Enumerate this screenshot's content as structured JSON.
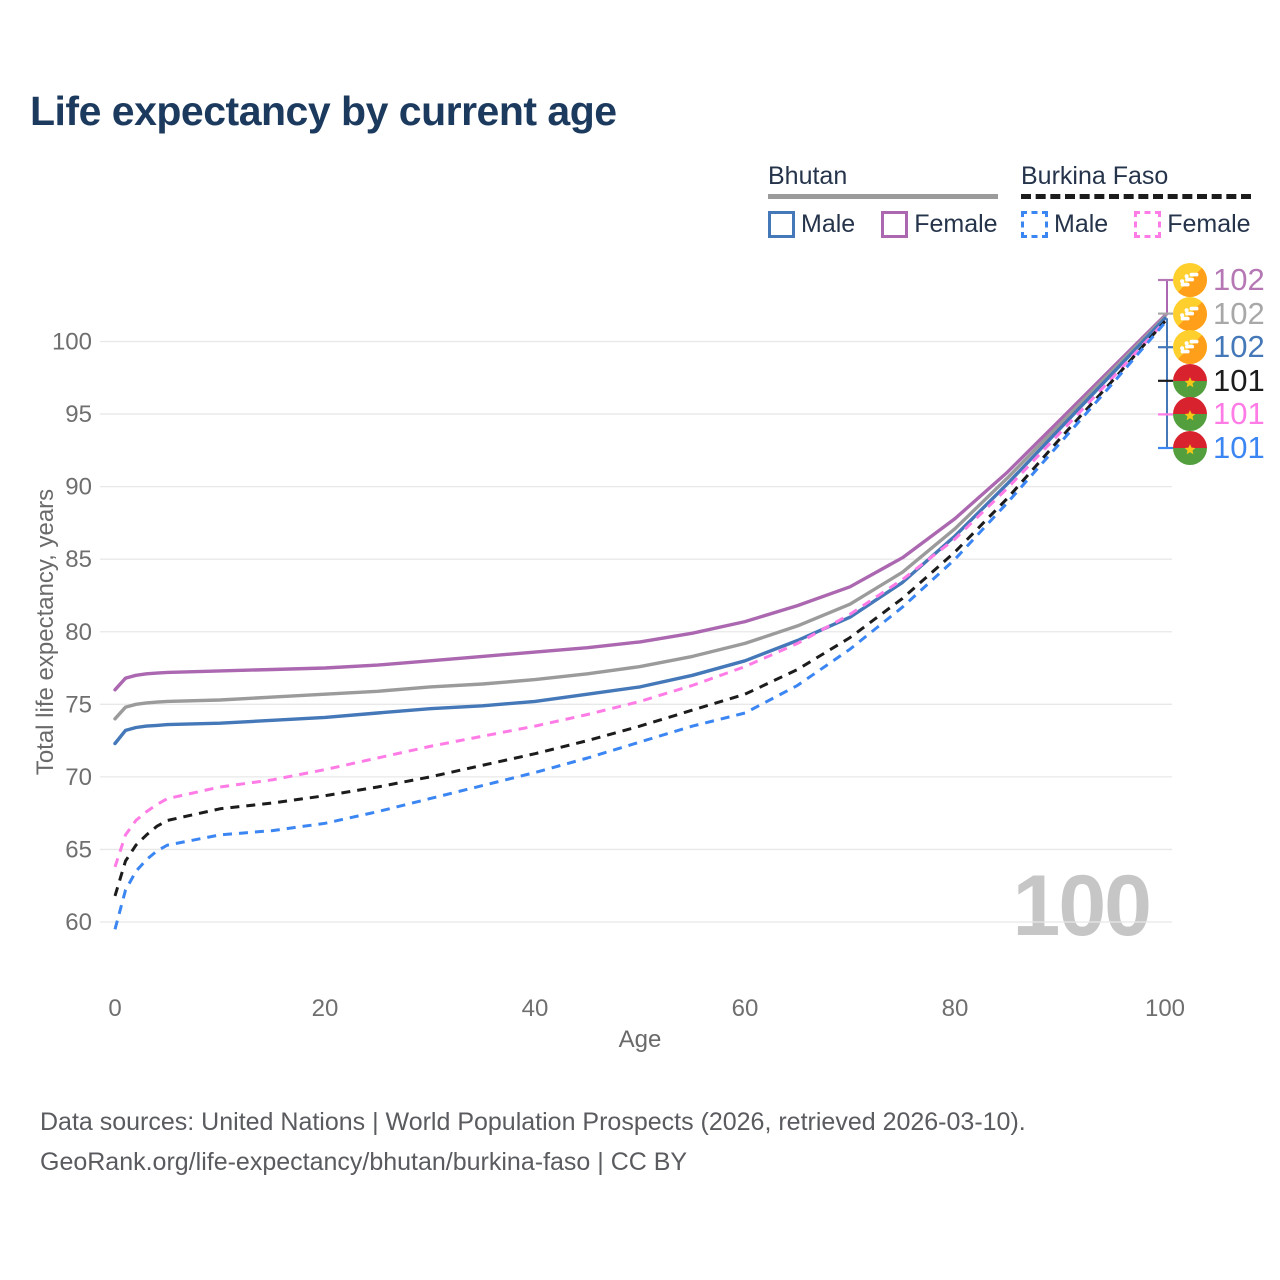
{
  "title": "Life expectancy by current age",
  "legend": {
    "groups": [
      {
        "label": "Bhutan",
        "underline": "solid",
        "underline_color": "#9b9b9b",
        "items": [
          {
            "label": "Male",
            "color": "#4478b8",
            "dash": "solid"
          },
          {
            "label": "Female",
            "color": "#ab68b0",
            "dash": "solid"
          }
        ]
      },
      {
        "label": "Burkina Faso",
        "underline": "dashed",
        "underline_color": "#1c1c1c",
        "items": [
          {
            "label": "Male",
            "color": "#3b86f2",
            "dash": "dashed"
          },
          {
            "label": "Female",
            "color": "#ff7ce6",
            "dash": "dashed"
          }
        ]
      }
    ]
  },
  "endpoints": [
    {
      "flag": "bhutan",
      "value": "102",
      "color": "#b578b5"
    },
    {
      "flag": "bhutan",
      "value": "102",
      "color": "#a8a8a8"
    },
    {
      "flag": "bhutan",
      "value": "102",
      "color": "#4478b8"
    },
    {
      "flag": "burkina-faso",
      "value": "101",
      "color": "#1c1c1c"
    },
    {
      "flag": "burkina-faso",
      "value": "101",
      "color": "#ff7ce6"
    },
    {
      "flag": "burkina-faso",
      "value": "101",
      "color": "#3b86f2"
    }
  ],
  "watermark": "100",
  "footer": {
    "line1": "Data sources: United Nations | World Population Prospects (2026, retrieved 2026-03-10).",
    "line2": "GeoRank.org/life-expectancy/bhutan/burkina-faso | CC BY"
  },
  "chart_data": {
    "type": "line",
    "title": "Life expectancy by current age",
    "xlabel": "Age",
    "ylabel": "Total life expectancy, years",
    "xlim": [
      0,
      100
    ],
    "ylim": [
      58.5,
      103
    ],
    "x_ticks": [
      0,
      20,
      40,
      60,
      80,
      100
    ],
    "y_ticks": [
      60,
      65,
      70,
      75,
      80,
      85,
      90,
      95,
      100
    ],
    "grid": "horizontal-only",
    "legend_position": "top-right",
    "x": [
      0,
      1,
      2,
      3,
      4,
      5,
      10,
      15,
      20,
      25,
      30,
      35,
      40,
      45,
      50,
      55,
      60,
      65,
      70,
      75,
      80,
      85,
      90,
      95,
      100
    ],
    "series": [
      {
        "id": "bhutan-female",
        "name": "Bhutan Female",
        "country": "Bhutan",
        "sex": "Female",
        "color": "#ab68b0",
        "dash": "solid",
        "end_label": 102,
        "values": [
          76.0,
          76.8,
          77.0,
          77.1,
          77.15,
          77.2,
          77.3,
          77.4,
          77.5,
          77.7,
          78.0,
          78.3,
          78.6,
          78.9,
          79.3,
          79.9,
          80.7,
          81.8,
          83.1,
          85.1,
          87.8,
          91.0,
          94.6,
          98.2,
          101.8
        ]
      },
      {
        "id": "bhutan-total",
        "name": "Bhutan Both sexes",
        "country": "Bhutan",
        "sex": "Both",
        "color": "#9b9b9b",
        "dash": "solid",
        "end_label": 102,
        "values": [
          74.0,
          74.8,
          75.0,
          75.1,
          75.15,
          75.2,
          75.3,
          75.5,
          75.7,
          75.9,
          76.2,
          76.4,
          76.7,
          77.1,
          77.6,
          78.3,
          79.2,
          80.4,
          81.9,
          84.1,
          87.1,
          90.6,
          94.3,
          98.0,
          101.7
        ]
      },
      {
        "id": "bhutan-male",
        "name": "Bhutan Male",
        "country": "Bhutan",
        "sex": "Male",
        "color": "#4478b8",
        "dash": "solid",
        "end_label": 102,
        "values": [
          72.3,
          73.2,
          73.4,
          73.5,
          73.55,
          73.6,
          73.7,
          73.9,
          74.1,
          74.4,
          74.7,
          74.9,
          75.2,
          75.7,
          76.2,
          77.0,
          78.0,
          79.4,
          81.0,
          83.4,
          86.6,
          90.2,
          94.0,
          97.8,
          101.6
        ]
      },
      {
        "id": "burkina-faso-female",
        "name": "Burkina Faso Female",
        "country": "Burkina Faso",
        "sex": "Female",
        "color": "#ff7ce6",
        "dash": "dashed",
        "end_label": 101,
        "values": [
          63.8,
          66.0,
          67.0,
          67.6,
          68.1,
          68.5,
          69.3,
          69.8,
          70.5,
          71.3,
          72.1,
          72.8,
          73.5,
          74.3,
          75.2,
          76.3,
          77.6,
          79.2,
          81.2,
          83.6,
          86.4,
          89.9,
          93.7,
          97.5,
          101.4
        ]
      },
      {
        "id": "burkina-faso-total",
        "name": "Burkina Faso Both sexes",
        "country": "Burkina Faso",
        "sex": "Both",
        "color": "#1c1c1c",
        "dash": "dashed",
        "end_label": 101,
        "values": [
          61.8,
          64.2,
          65.3,
          66.0,
          66.6,
          67.0,
          67.8,
          68.2,
          68.7,
          69.3,
          70.0,
          70.8,
          71.6,
          72.5,
          73.5,
          74.6,
          75.7,
          77.4,
          79.6,
          82.3,
          85.5,
          89.2,
          93.3,
          97.3,
          101.4
        ]
      },
      {
        "id": "burkina-faso-male",
        "name": "Burkina Faso Male",
        "country": "Burkina Faso",
        "sex": "Male",
        "color": "#3b86f2",
        "dash": "dashed",
        "end_label": 101,
        "values": [
          59.5,
          62.2,
          63.5,
          64.3,
          64.9,
          65.3,
          66.0,
          66.3,
          66.8,
          67.6,
          68.5,
          69.4,
          70.3,
          71.3,
          72.4,
          73.5,
          74.4,
          76.3,
          78.8,
          81.7,
          85.0,
          88.9,
          93.0,
          97.1,
          101.3
        ]
      }
    ]
  }
}
